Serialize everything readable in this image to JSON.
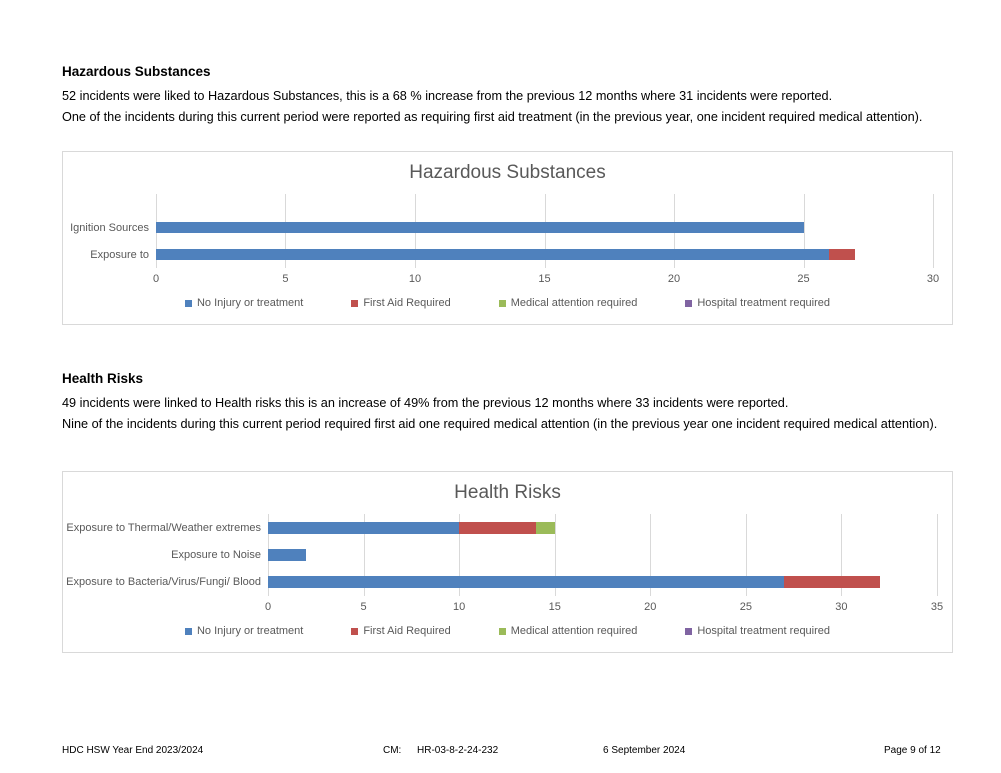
{
  "sections": [
    {
      "heading": "Hazardous Substances",
      "para1": "52 incidents were liked to Hazardous Substances, this is a 68 % increase from the previous 12 months where 31 incidents were reported.",
      "para2": "One of the incidents during this current period were reported as requiring first aid treatment (in the previous year, one incident required medical attention)."
    },
    {
      "heading": "Health Risks",
      "para1": "49 incidents were linked to Health risks this is an increase of 49% from the previous 12 months where 33 incidents were reported.",
      "para2": "Nine of the incidents during this current period required first aid one required medical attention (in the previous year one incident required medical attention)."
    }
  ],
  "footer": {
    "left": "HDC HSW Year End 2023/2024",
    "cm_label": "CM:",
    "cm_value": "HR-03-8-2-24-232",
    "date": "6 September 2024",
    "page": "Page 9 of 12"
  },
  "chart_data": [
    {
      "type": "bar",
      "orientation": "horizontal",
      "stacked": true,
      "title": "Hazardous Substances",
      "categories": [
        "Ignition Sources",
        "Exposure to"
      ],
      "series": [
        {
          "name": "No Injury or treatment",
          "color": "#4F81BD",
          "values": [
            25,
            26
          ]
        },
        {
          "name": "First Aid Required",
          "color": "#C0504D",
          "values": [
            0,
            1
          ]
        },
        {
          "name": "Medical attention required",
          "color": "#9BBB59",
          "values": [
            0,
            0
          ]
        },
        {
          "name": "Hospital treatment required",
          "color": "#8064A2",
          "values": [
            0,
            0
          ]
        }
      ],
      "xlim": [
        0,
        30
      ],
      "xticks": [
        0,
        5,
        10,
        15,
        20,
        25,
        30
      ],
      "grid": true,
      "legend_position": "bottom"
    },
    {
      "type": "bar",
      "orientation": "horizontal",
      "stacked": true,
      "title": "Health Risks",
      "categories": [
        "Exposure to Thermal/Weather extremes",
        "Exposure to Noise",
        "Exposure to Bacteria/Virus/Fungi/ Blood"
      ],
      "series": [
        {
          "name": "No Injury or treatment",
          "color": "#4F81BD",
          "values": [
            10,
            2,
            27
          ]
        },
        {
          "name": "First Aid Required",
          "color": "#C0504D",
          "values": [
            4,
            0,
            5
          ]
        },
        {
          "name": "Medical attention required",
          "color": "#9BBB59",
          "values": [
            1,
            0,
            0
          ]
        },
        {
          "name": "Hospital treatment required",
          "color": "#8064A2",
          "values": [
            0,
            0,
            0
          ]
        }
      ],
      "xlim": [
        0,
        35
      ],
      "xticks": [
        0,
        5,
        10,
        15,
        20,
        25,
        30,
        35
      ],
      "grid": true,
      "legend_position": "bottom"
    }
  ]
}
